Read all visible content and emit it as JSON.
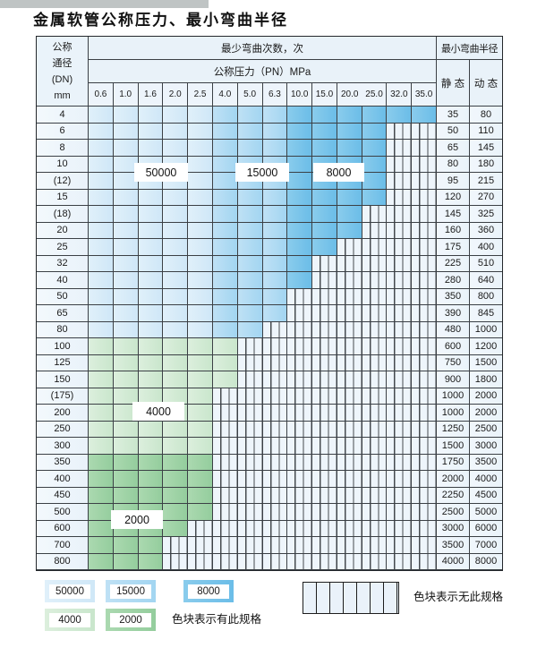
{
  "title": "金属软管公称压力、最小弯曲半径",
  "table": {
    "dn_header_lines": [
      "公称",
      "通径",
      "(DN)",
      "mm"
    ],
    "cycles_header": "最少弯曲次数，次",
    "pressure_header": "公称压力（PN）MPa",
    "radius_header": "最小弯曲半径",
    "static_label": "静 态",
    "dynamic_label": "动 态",
    "pressure_columns": [
      "0.6",
      "1.0",
      "1.6",
      "2.0",
      "2.5",
      "4.0",
      "5.0",
      "6.3",
      "10.0",
      "15.0",
      "20.0",
      "25.0",
      "32.0",
      "35.0"
    ],
    "rows": [
      {
        "dn": "4",
        "colored": 14,
        "group": "blue",
        "static": "35",
        "dynamic": "80"
      },
      {
        "dn": "6",
        "colored": 12,
        "group": "blue",
        "static": "50",
        "dynamic": "110"
      },
      {
        "dn": "8",
        "colored": 12,
        "group": "blue",
        "static": "65",
        "dynamic": "145"
      },
      {
        "dn": "10",
        "colored": 12,
        "group": "blue",
        "static": "80",
        "dynamic": "180"
      },
      {
        "dn": "(12)",
        "colored": 12,
        "group": "blue",
        "static": "95",
        "dynamic": "215"
      },
      {
        "dn": "15",
        "colored": 12,
        "group": "blue",
        "static": "120",
        "dynamic": "270"
      },
      {
        "dn": "(18)",
        "colored": 11,
        "group": "blue",
        "static": "145",
        "dynamic": "325"
      },
      {
        "dn": "20",
        "colored": 11,
        "group": "blue",
        "static": "160",
        "dynamic": "360"
      },
      {
        "dn": "25",
        "colored": 10,
        "group": "blue",
        "static": "175",
        "dynamic": "400"
      },
      {
        "dn": "32",
        "colored": 9,
        "group": "blue",
        "static": "225",
        "dynamic": "510"
      },
      {
        "dn": "40",
        "colored": 9,
        "group": "blue",
        "static": "280",
        "dynamic": "640"
      },
      {
        "dn": "50",
        "colored": 8,
        "group": "blue",
        "static": "350",
        "dynamic": "800"
      },
      {
        "dn": "65",
        "colored": 8,
        "group": "blue",
        "static": "390",
        "dynamic": "845"
      },
      {
        "dn": "80",
        "colored": 7,
        "group": "blue",
        "static": "480",
        "dynamic": "1000"
      },
      {
        "dn": "100",
        "colored": 6,
        "group": "g4000",
        "static": "600",
        "dynamic": "1200"
      },
      {
        "dn": "125",
        "colored": 6,
        "group": "g4000",
        "static": "750",
        "dynamic": "1500"
      },
      {
        "dn": "150",
        "colored": 6,
        "group": "g4000",
        "static": "900",
        "dynamic": "1800"
      },
      {
        "dn": "(175)",
        "colored": 5,
        "group": "g4000",
        "static": "1000",
        "dynamic": "2000"
      },
      {
        "dn": "200",
        "colored": 5,
        "group": "g4000",
        "static": "1000",
        "dynamic": "2000"
      },
      {
        "dn": "250",
        "colored": 5,
        "group": "g4000",
        "static": "1250",
        "dynamic": "2500"
      },
      {
        "dn": "300",
        "colored": 5,
        "group": "g4000",
        "static": "1500",
        "dynamic": "3000"
      },
      {
        "dn": "350",
        "colored": 5,
        "group": "g2000",
        "static": "1750",
        "dynamic": "3500"
      },
      {
        "dn": "400",
        "colored": 5,
        "group": "g2000",
        "static": "2000",
        "dynamic": "4000"
      },
      {
        "dn": "450",
        "colored": 5,
        "group": "g2000",
        "static": "2250",
        "dynamic": "4500"
      },
      {
        "dn": "500",
        "colored": 5,
        "group": "g2000",
        "static": "2500",
        "dynamic": "5000"
      },
      {
        "dn": "600",
        "colored": 4,
        "group": "g2000",
        "static": "3000",
        "dynamic": "6000"
      },
      {
        "dn": "700",
        "colored": 3,
        "group": "g2000",
        "static": "3500",
        "dynamic": "7000"
      },
      {
        "dn": "800",
        "colored": 3,
        "group": "g2000",
        "static": "4000",
        "dynamic": "8000"
      }
    ]
  },
  "overlay_labels": [
    {
      "text": "50000"
    },
    {
      "text": "15000"
    },
    {
      "text": "8000"
    },
    {
      "text": "4000"
    },
    {
      "text": "2000"
    }
  ],
  "legend": {
    "items": [
      {
        "label": "50000"
      },
      {
        "label": "15000"
      },
      {
        "label": "8000"
      },
      {
        "label": "4000"
      },
      {
        "label": "2000"
      }
    ],
    "has_spec_text": "色块表示有此规格",
    "no_spec_text": "色块表示无此规格"
  },
  "colors": {
    "c50000": "#cfe7f7",
    "c15000": "#a2d5f1",
    "c8000": "#6bbde8",
    "c4000": "#c9e6cc",
    "c2000": "#94cd9d",
    "hatch_bg": "#eef5fb",
    "grid_line": "#3b4045"
  }
}
